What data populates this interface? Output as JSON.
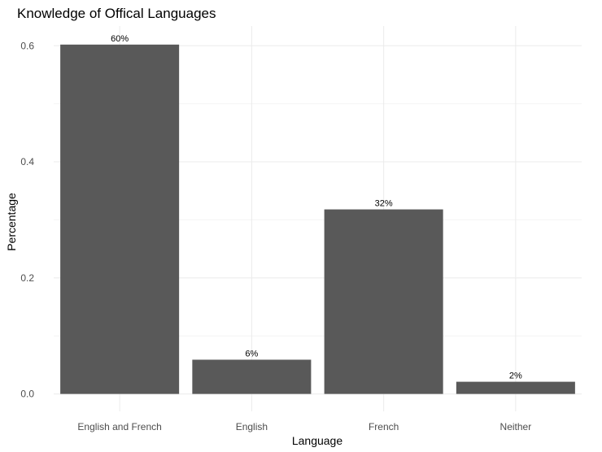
{
  "chart_data": {
    "type": "bar",
    "title": "Knowledge of Offical Languages",
    "xlabel": "Language",
    "ylabel": "Percentage",
    "categories": [
      "English and French",
      "English",
      "French",
      "Neither"
    ],
    "values": [
      0.602,
      0.059,
      0.318,
      0.021
    ],
    "data_labels": [
      "60%",
      "6%",
      "32%",
      "2%"
    ],
    "yticks": [
      0.0,
      0.2,
      0.4,
      0.6
    ],
    "ytick_labels": [
      "0.0",
      "0.2",
      "0.4",
      "0.6"
    ],
    "ylim": [
      -0.03,
      0.634
    ],
    "grid": true,
    "legend": "none",
    "colors": {
      "bar": "#595959",
      "grid_major": "#ebebeb",
      "grid_minor": "#f4f4f4"
    }
  }
}
